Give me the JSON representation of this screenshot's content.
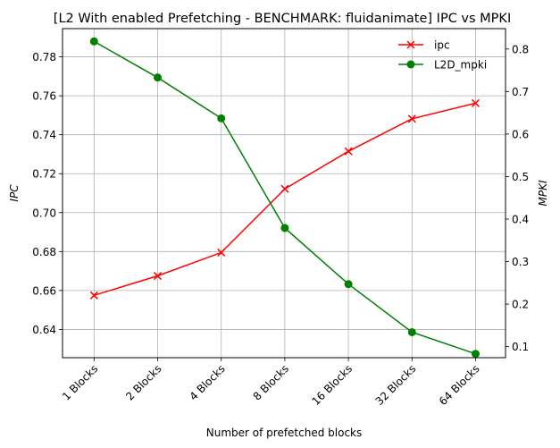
{
  "chart_data": {
    "type": "line",
    "title": "[L2 With enabled Prefetching - BENCHMARK: fluidanimate]  IPC vs MPKI",
    "xlabel": "Number of prefetched blocks",
    "ylabel_left": "IPC",
    "ylabel_right": "MPKI",
    "categories": [
      "1 Blocks",
      "2 Blocks",
      "4 Blocks",
      "8 Blocks",
      "16 Blocks",
      "32 Blocks",
      "64 Blocks"
    ],
    "ylim_left": [
      0.6255,
      0.7945
    ],
    "ylim_right": [
      0.074,
      0.848
    ],
    "yticks_left": [
      "0.64",
      "0.66",
      "0.68",
      "0.70",
      "0.72",
      "0.74",
      "0.76",
      "0.78"
    ],
    "yticks_right": [
      "0.1",
      "0.2",
      "0.3",
      "0.4",
      "0.5",
      "0.6",
      "0.7",
      "0.8"
    ],
    "grid": true,
    "legend_position": "top-right",
    "series": [
      {
        "name": "ipc",
        "axis": "left",
        "color": "#ff0000",
        "marker": "x",
        "values": [
          0.6575,
          0.6675,
          0.6795,
          0.7122,
          0.7315,
          0.7482,
          0.7562
        ]
      },
      {
        "name": "L2D_mpki",
        "axis": "right",
        "color": "#008000",
        "marker": "o",
        "values": [
          0.818,
          0.733,
          0.637,
          0.379,
          0.247,
          0.134,
          0.083
        ]
      }
    ]
  }
}
